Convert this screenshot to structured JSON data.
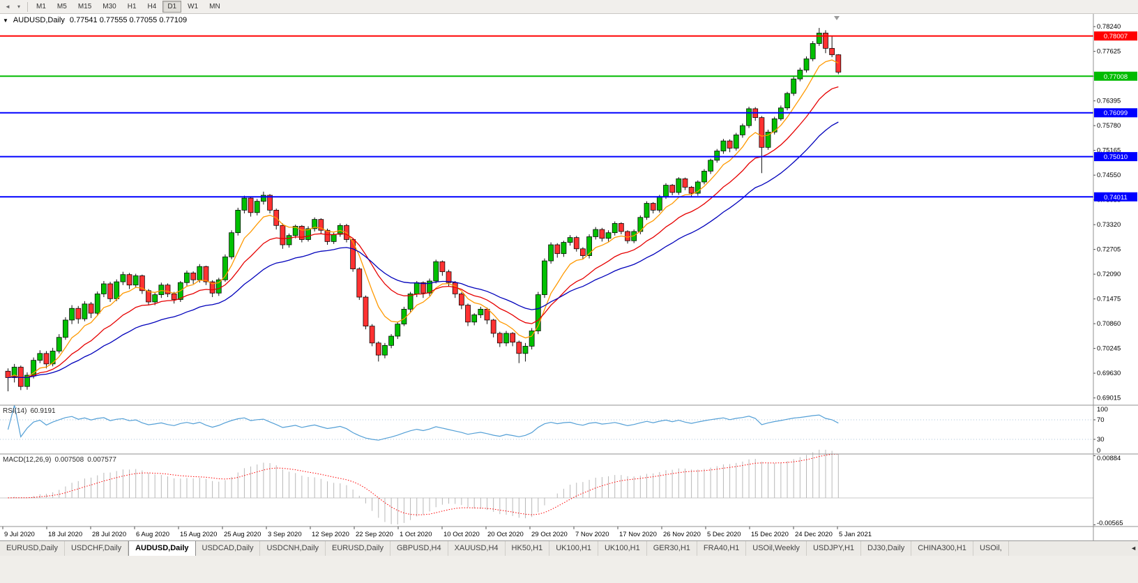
{
  "toolbar": {
    "left_icons": [
      {
        "name": "chart-collapse-icon",
        "glyph": "◄"
      },
      {
        "name": "chart-menu-icon",
        "glyph": "▾"
      }
    ],
    "timeframes": [
      "M1",
      "M5",
      "M15",
      "M30",
      "H1",
      "H4",
      "D1",
      "W1",
      "MN"
    ],
    "active_timeframe": "D1"
  },
  "chart": {
    "expand_icon": "▼",
    "symbol_title": "AUDUSD,Daily",
    "ohlc_display": "0.77541 0.77555 0.77055 0.77109",
    "open": "0.77541",
    "high": "0.77555",
    "low": "0.77055",
    "close": "0.77109"
  },
  "price_axis": {
    "ticks": [
      "0.78240",
      "0.77625",
      "0.77010",
      "0.76395",
      "0.75780",
      "0.75165",
      "0.74550",
      "0.73935",
      "0.73320",
      "0.72705",
      "0.72090",
      "0.71475",
      "0.70860",
      "0.70245",
      "0.69630",
      "0.69015"
    ]
  },
  "hlines": [
    {
      "label": "0.78007",
      "price": 0.78007,
      "color": "#ff0000"
    },
    {
      "label": "0.77008",
      "price": 0.77008,
      "color": "#00bb00"
    },
    {
      "label": "0.76099",
      "price": 0.76099,
      "color": "#0000ff"
    },
    {
      "label": "0.75010",
      "price": 0.7501,
      "color": "#0000ff"
    },
    {
      "label": "0.74011",
      "price": 0.74011,
      "color": "#0000ff"
    }
  ],
  "chart_data": {
    "type": "candlestick",
    "symbol": "AUDUSD",
    "timeframe": "Daily",
    "price_range": {
      "min": 0.6887,
      "max": 0.7852
    },
    "colors": {
      "up": "#00c000",
      "down": "#ff3232",
      "outline": "#000000",
      "wick": "#111111"
    },
    "moving_averages": [
      {
        "period": 7,
        "method": "ema",
        "color": "#ff9900"
      },
      {
        "period": 16,
        "method": "ema",
        "color": "#e60000"
      },
      {
        "period": 30,
        "method": "ema",
        "color": "#0000bb"
      }
    ],
    "candles": [
      [
        0.6968,
        0.6975,
        0.6918,
        0.6952
      ],
      [
        0.6952,
        0.6986,
        0.694,
        0.6978
      ],
      [
        0.6978,
        0.6982,
        0.6921,
        0.693
      ],
      [
        0.693,
        0.6965,
        0.6922,
        0.6958
      ],
      [
        0.6958,
        0.7002,
        0.695,
        0.6995
      ],
      [
        0.6995,
        0.702,
        0.6988,
        0.7012
      ],
      [
        0.7012,
        0.7018,
        0.6975,
        0.6986
      ],
      [
        0.6986,
        0.7026,
        0.698,
        0.7018
      ],
      [
        0.7018,
        0.706,
        0.7012,
        0.7052
      ],
      [
        0.7052,
        0.7102,
        0.7046,
        0.7095
      ],
      [
        0.7095,
        0.7132,
        0.7085,
        0.7124
      ],
      [
        0.7124,
        0.713,
        0.7086,
        0.7098
      ],
      [
        0.7098,
        0.7142,
        0.7092,
        0.7135
      ],
      [
        0.7135,
        0.714,
        0.71,
        0.7112
      ],
      [
        0.7112,
        0.7166,
        0.7105,
        0.716
      ],
      [
        0.716,
        0.7192,
        0.7152,
        0.7185
      ],
      [
        0.7185,
        0.719,
        0.714,
        0.7148
      ],
      [
        0.7148,
        0.7196,
        0.7142,
        0.719
      ],
      [
        0.719,
        0.7215,
        0.7182,
        0.7208
      ],
      [
        0.7208,
        0.7212,
        0.7172,
        0.7182
      ],
      [
        0.7182,
        0.721,
        0.7175,
        0.7205
      ],
      [
        0.7205,
        0.7208,
        0.716,
        0.7168
      ],
      [
        0.7168,
        0.7172,
        0.7132,
        0.714
      ],
      [
        0.714,
        0.7165,
        0.7132,
        0.7158
      ],
      [
        0.7158,
        0.7188,
        0.715,
        0.7182
      ],
      [
        0.7182,
        0.7186,
        0.7152,
        0.716
      ],
      [
        0.716,
        0.7165,
        0.7136,
        0.7146
      ],
      [
        0.7146,
        0.7192,
        0.714,
        0.7188
      ],
      [
        0.7188,
        0.7218,
        0.718,
        0.7212
      ],
      [
        0.7212,
        0.7216,
        0.7185,
        0.7195
      ],
      [
        0.7195,
        0.7234,
        0.7188,
        0.7228
      ],
      [
        0.7228,
        0.723,
        0.7182,
        0.719
      ],
      [
        0.719,
        0.7194,
        0.7152,
        0.7162
      ],
      [
        0.7162,
        0.72,
        0.7155,
        0.7195
      ],
      [
        0.7195,
        0.7258,
        0.719,
        0.7252
      ],
      [
        0.7252,
        0.7318,
        0.7246,
        0.7312
      ],
      [
        0.7312,
        0.7374,
        0.7305,
        0.7368
      ],
      [
        0.7368,
        0.7404,
        0.736,
        0.7398
      ],
      [
        0.7398,
        0.7402,
        0.7352,
        0.7362
      ],
      [
        0.7362,
        0.7396,
        0.7355,
        0.739
      ],
      [
        0.739,
        0.7414,
        0.7382,
        0.7405
      ],
      [
        0.7405,
        0.7408,
        0.736,
        0.7368
      ],
      [
        0.7368,
        0.7372,
        0.732,
        0.733
      ],
      [
        0.733,
        0.7335,
        0.7272,
        0.7282
      ],
      [
        0.7282,
        0.731,
        0.7275,
        0.7305
      ],
      [
        0.7305,
        0.7332,
        0.7298,
        0.7328
      ],
      [
        0.7328,
        0.7331,
        0.7288,
        0.7295
      ],
      [
        0.7295,
        0.7328,
        0.729,
        0.7322
      ],
      [
        0.7322,
        0.735,
        0.7315,
        0.7345
      ],
      [
        0.7345,
        0.7348,
        0.731,
        0.7318
      ],
      [
        0.7318,
        0.7322,
        0.7282,
        0.729
      ],
      [
        0.729,
        0.7312,
        0.7284,
        0.7308
      ],
      [
        0.7308,
        0.7335,
        0.7302,
        0.733
      ],
      [
        0.733,
        0.7334,
        0.7288,
        0.7295
      ],
      [
        0.7295,
        0.7298,
        0.7215,
        0.7222
      ],
      [
        0.7222,
        0.7226,
        0.7145,
        0.7152
      ],
      [
        0.7152,
        0.7156,
        0.7072,
        0.708
      ],
      [
        0.708,
        0.7085,
        0.703,
        0.7038
      ],
      [
        0.7038,
        0.7042,
        0.6992,
        0.7008
      ],
      [
        0.7008,
        0.7038,
        0.7,
        0.7032
      ],
      [
        0.7032,
        0.706,
        0.7025,
        0.7055
      ],
      [
        0.7055,
        0.709,
        0.7048,
        0.7085
      ],
      [
        0.7085,
        0.7128,
        0.708,
        0.7122
      ],
      [
        0.7122,
        0.7165,
        0.7115,
        0.716
      ],
      [
        0.716,
        0.7192,
        0.7152,
        0.7188
      ],
      [
        0.7188,
        0.7191,
        0.715,
        0.7162
      ],
      [
        0.7162,
        0.7198,
        0.7155,
        0.7192
      ],
      [
        0.7192,
        0.7245,
        0.7186,
        0.724
      ],
      [
        0.724,
        0.7243,
        0.7205,
        0.7215
      ],
      [
        0.7215,
        0.722,
        0.7178,
        0.7188
      ],
      [
        0.7188,
        0.7192,
        0.715,
        0.716
      ],
      [
        0.716,
        0.7164,
        0.7122,
        0.7132
      ],
      [
        0.7132,
        0.7136,
        0.708,
        0.709
      ],
      [
        0.709,
        0.7112,
        0.7082,
        0.7108
      ],
      [
        0.7108,
        0.7128,
        0.71,
        0.7122
      ],
      [
        0.7122,
        0.7126,
        0.7085,
        0.7095
      ],
      [
        0.7095,
        0.7098,
        0.7052,
        0.7062
      ],
      [
        0.7062,
        0.7066,
        0.7028,
        0.7038
      ],
      [
        0.7038,
        0.7068,
        0.703,
        0.7062
      ],
      [
        0.7062,
        0.7065,
        0.703,
        0.704
      ],
      [
        0.704,
        0.7044,
        0.6988,
        0.7012
      ],
      [
        0.7012,
        0.7038,
        0.6992,
        0.703
      ],
      [
        0.703,
        0.7075,
        0.7022,
        0.7068
      ],
      [
        0.7068,
        0.7165,
        0.706,
        0.7158
      ],
      [
        0.7158,
        0.7248,
        0.715,
        0.7242
      ],
      [
        0.7242,
        0.7288,
        0.7235,
        0.7282
      ],
      [
        0.7282,
        0.7286,
        0.725,
        0.726
      ],
      [
        0.726,
        0.7292,
        0.7252,
        0.7288
      ],
      [
        0.7288,
        0.7306,
        0.728,
        0.73
      ],
      [
        0.73,
        0.7304,
        0.7265,
        0.7272
      ],
      [
        0.7272,
        0.7276,
        0.7246,
        0.7255
      ],
      [
        0.7255,
        0.7308,
        0.7248,
        0.7302
      ],
      [
        0.7302,
        0.7326,
        0.7295,
        0.732
      ],
      [
        0.732,
        0.7324,
        0.729,
        0.7298
      ],
      [
        0.7298,
        0.7318,
        0.729,
        0.7312
      ],
      [
        0.7312,
        0.734,
        0.7305,
        0.7335
      ],
      [
        0.7335,
        0.7338,
        0.7308,
        0.7315
      ],
      [
        0.7315,
        0.7318,
        0.7285,
        0.7292
      ],
      [
        0.7292,
        0.732,
        0.7286,
        0.7315
      ],
      [
        0.7315,
        0.7355,
        0.7308,
        0.735
      ],
      [
        0.735,
        0.739,
        0.7344,
        0.7385
      ],
      [
        0.7385,
        0.7388,
        0.736,
        0.7368
      ],
      [
        0.7368,
        0.7406,
        0.7362,
        0.7402
      ],
      [
        0.7402,
        0.7435,
        0.7396,
        0.743
      ],
      [
        0.743,
        0.7433,
        0.7405,
        0.7412
      ],
      [
        0.7412,
        0.745,
        0.7406,
        0.7446
      ],
      [
        0.7446,
        0.7449,
        0.7418,
        0.7425
      ],
      [
        0.7425,
        0.7428,
        0.7402,
        0.741
      ],
      [
        0.741,
        0.7442,
        0.7404,
        0.7438
      ],
      [
        0.7438,
        0.747,
        0.7432,
        0.7465
      ],
      [
        0.7465,
        0.7496,
        0.7458,
        0.7492
      ],
      [
        0.7492,
        0.752,
        0.7486,
        0.7515
      ],
      [
        0.7515,
        0.7545,
        0.7508,
        0.754
      ],
      [
        0.754,
        0.7544,
        0.7512,
        0.7522
      ],
      [
        0.7522,
        0.756,
        0.7516,
        0.7555
      ],
      [
        0.7555,
        0.7583,
        0.7548,
        0.7578
      ],
      [
        0.7578,
        0.7625,
        0.7572,
        0.762
      ],
      [
        0.762,
        0.7624,
        0.759,
        0.7598
      ],
      [
        0.7598,
        0.7602,
        0.746,
        0.7524
      ],
      [
        0.7524,
        0.7568,
        0.7518,
        0.7562
      ],
      [
        0.7562,
        0.76,
        0.7556,
        0.7595
      ],
      [
        0.7595,
        0.7628,
        0.759,
        0.7622
      ],
      [
        0.7622,
        0.7662,
        0.7616,
        0.7658
      ],
      [
        0.7658,
        0.77,
        0.7652,
        0.7694
      ],
      [
        0.7694,
        0.7722,
        0.7688,
        0.7716
      ],
      [
        0.7716,
        0.775,
        0.771,
        0.7744
      ],
      [
        0.7744,
        0.7788,
        0.7738,
        0.7782
      ],
      [
        0.7782,
        0.78207,
        0.7776,
        0.7808
      ],
      [
        0.7808,
        0.7815,
        0.7758,
        0.777
      ],
      [
        0.777,
        0.78,
        0.7748,
        0.77541
      ],
      [
        0.77541,
        0.77555,
        0.77055,
        0.77109
      ]
    ]
  },
  "rsi": {
    "name": "RSI(14)",
    "value": "60.9191",
    "period": 14,
    "ticks": [
      "100",
      "70",
      "30",
      "0"
    ],
    "levels": [
      70,
      30
    ],
    "color": "#539fd6"
  },
  "macd": {
    "name": "MACD(12,26,9)",
    "value_main": "0.007508",
    "value_signal": "0.007577",
    "fast": 12,
    "slow": 26,
    "signal": 9,
    "ticks": [
      "0.00884",
      "-0.00565"
    ],
    "tick_values": [
      0.00884,
      -0.00565
    ],
    "histogram_color": "#b8b8b8",
    "signal_color": "#ff0000"
  },
  "date_axis": {
    "labels": [
      "9 Jul 2020",
      "18 Jul 2020",
      "28 Jul 2020",
      "6 Aug 2020",
      "15 Aug 2020",
      "25 Aug 2020",
      "3 Sep 2020",
      "12 Sep 2020",
      "22 Sep 2020",
      "1 Oct 2020",
      "10 Oct 2020",
      "20 Oct 2020",
      "29 Oct 2020",
      "7 Nov 2020",
      "17 Nov 2020",
      "26 Nov 2020",
      "5 Dec 2020",
      "15 Dec 2020",
      "24 Dec 2020",
      "5 Jan 2021"
    ]
  },
  "tabs": {
    "items": [
      "EURUSD,Daily",
      "USDCHF,Daily",
      "AUDUSD,Daily",
      "USDCAD,Daily",
      "USDCNH,Daily",
      "EURUSD,Daily",
      "GBPUSD,H4",
      "XAUUSD,H4",
      "HK50,H1",
      "UK100,H1",
      "UK100,H1",
      "GER30,H1",
      "FRA40,H1",
      "USOil,Weekly",
      "USDJPY,H1",
      "DJ30,Daily",
      "CHINA300,H1",
      "USOil,"
    ],
    "active_index": 2,
    "scroll_icon": "◄"
  }
}
